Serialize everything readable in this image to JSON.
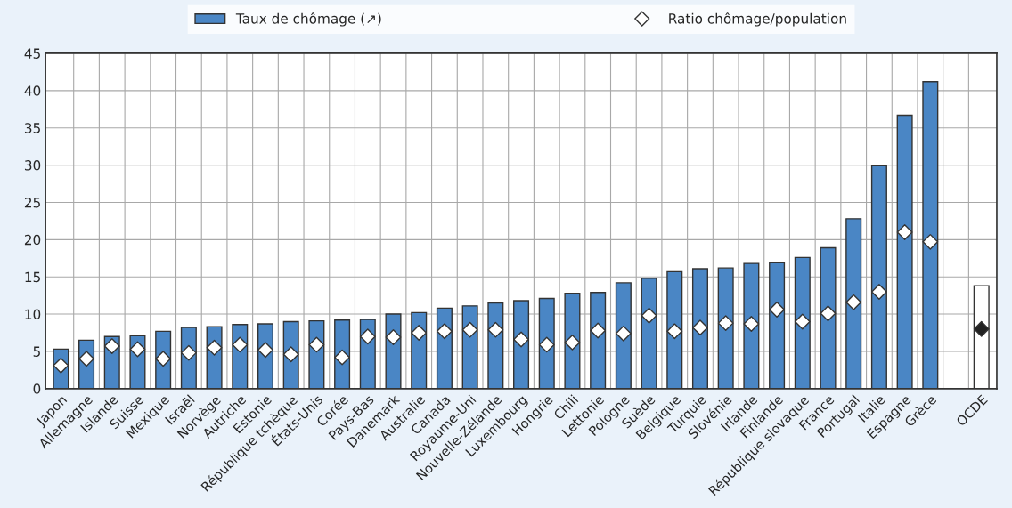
{
  "chart_data": {
    "type": "bar",
    "categories": [
      "Japon",
      "Allemagne",
      "Islande",
      "Suisse",
      "Mexique",
      "Israël",
      "Norvège",
      "Autriche",
      "Estonie",
      "République tchèque",
      "États-Unis",
      "Corée",
      "Pays-Bas",
      "Danemark",
      "Australie",
      "Canada",
      "Royaume-Uni",
      "Nouvelle-Zélande",
      "Luxembourg",
      "Hongrie",
      "Chili",
      "Lettonie",
      "Pologne",
      "Suède",
      "Belgique",
      "Turquie",
      "Slovénie",
      "Irlande",
      "Finlande",
      "République slovaque",
      "France",
      "Portugal",
      "Italie",
      "Espagne",
      "Grèce",
      null,
      "OCDE"
    ],
    "series": [
      {
        "name": "Taux de chômage (↗)",
        "color": "#4a86c5",
        "colors": [
          "#4a86c5",
          "#4a86c5",
          "#4a86c5",
          "#4a86c5",
          "#4a86c5",
          "#4a86c5",
          "#4a86c5",
          "#4a86c5",
          "#4a86c5",
          "#4a86c5",
          "#4a86c5",
          "#4a86c5",
          "#4a86c5",
          "#4a86c5",
          "#4a86c5",
          "#4a86c5",
          "#4a86c5",
          "#4a86c5",
          "#4a86c5",
          "#4a86c5",
          "#4a86c5",
          "#4a86c5",
          "#4a86c5",
          "#4a86c5",
          "#4a86c5",
          "#4a86c5",
          "#4a86c5",
          "#4a86c5",
          "#4a86c5",
          "#4a86c5",
          "#4a86c5",
          "#4a86c5",
          "#4a86c5",
          "#4a86c5",
          "#4a86c5",
          "#4a86c5",
          "#ffffff"
        ],
        "values": [
          5.3,
          6.5,
          7.0,
          7.1,
          7.7,
          8.2,
          8.3,
          8.6,
          8.7,
          9.0,
          9.1,
          9.2,
          9.3,
          10.0,
          10.2,
          10.8,
          11.1,
          11.5,
          11.8,
          12.1,
          12.8,
          12.9,
          14.2,
          14.8,
          15.7,
          16.1,
          16.2,
          16.8,
          16.9,
          17.6,
          18.9,
          22.8,
          29.9,
          36.7,
          41.2,
          null,
          13.8
        ]
      },
      {
        "name": "Ratio chômage/population",
        "type": "scatter",
        "marker": "diamond",
        "color": "#ffffff",
        "colors": [
          "#ffffff",
          "#ffffff",
          "#ffffff",
          "#ffffff",
          "#ffffff",
          "#ffffff",
          "#ffffff",
          "#ffffff",
          "#ffffff",
          "#ffffff",
          "#ffffff",
          "#ffffff",
          "#ffffff",
          "#ffffff",
          "#ffffff",
          "#ffffff",
          "#ffffff",
          "#ffffff",
          "#ffffff",
          "#ffffff",
          "#ffffff",
          "#ffffff",
          "#ffffff",
          "#ffffff",
          "#ffffff",
          "#ffffff",
          "#ffffff",
          "#ffffff",
          "#ffffff",
          "#ffffff",
          "#ffffff",
          "#ffffff",
          "#ffffff",
          "#ffffff",
          "#ffffff",
          "#ffffff",
          "#222222"
        ],
        "values": [
          3.1,
          4.0,
          5.7,
          5.3,
          4.0,
          4.8,
          5.5,
          5.9,
          5.2,
          4.6,
          5.9,
          4.2,
          7.0,
          6.9,
          7.5,
          7.7,
          7.9,
          7.9,
          6.6,
          5.9,
          6.2,
          7.8,
          7.4,
          9.8,
          7.7,
          8.2,
          8.8,
          8.7,
          10.6,
          9.0,
          10.1,
          11.6,
          13.0,
          21.0,
          19.7,
          null,
          8.0
        ]
      }
    ],
    "ylim": [
      0,
      45
    ],
    "yticks": [
      0,
      5,
      10,
      15,
      20,
      25,
      30,
      35,
      40,
      45
    ],
    "grid": true,
    "legend": "top"
  }
}
